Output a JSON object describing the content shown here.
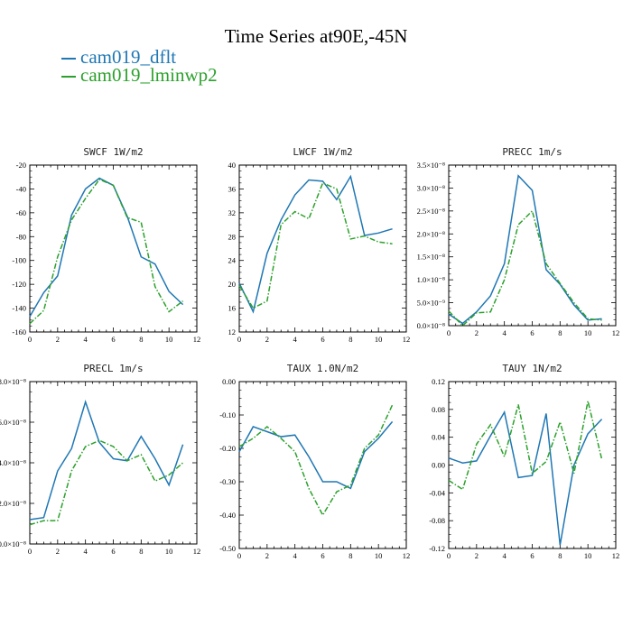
{
  "title": "Time Series at90E,-45N",
  "legend": [
    {
      "label": "cam019_dflt",
      "color": "#1f77b4"
    },
    {
      "label": "cam019_lminwp2",
      "color": "#2ca02c"
    }
  ],
  "chart_data": [
    {
      "type": "line",
      "title": "SWCF",
      "units": "1W/m2",
      "x": [
        0,
        1,
        2,
        3,
        4,
        5,
        6,
        7,
        8,
        9,
        10,
        11
      ],
      "xlim": [
        0,
        12
      ],
      "ylim": [
        -160,
        -20
      ],
      "xticks": [
        0,
        2,
        4,
        6,
        8,
        10,
        12
      ],
      "xticklabels": [
        "0",
        "2",
        "4",
        "6",
        "8",
        "10",
        "12"
      ],
      "yticks": [
        -160,
        -140,
        -120,
        -100,
        -80,
        -60,
        -40,
        -20
      ],
      "yticklabels": [
        "-160",
        "-140",
        "-120",
        "-100",
        "-80",
        "-60",
        "-40",
        "-20"
      ],
      "series": [
        {
          "name": "cam019_dflt",
          "values": [
            -147,
            -127,
            -113,
            -62,
            -40,
            -31,
            -37,
            -63,
            -97,
            -103,
            -126,
            -137
          ]
        },
        {
          "name": "cam019_lminwp2",
          "values": [
            -153,
            -142,
            -97,
            -66,
            -48,
            -32,
            -37,
            -64,
            -68,
            -122,
            -143,
            -134
          ]
        }
      ]
    },
    {
      "type": "line",
      "title": "LWCF",
      "units": "1W/m2",
      "x": [
        0,
        1,
        2,
        3,
        4,
        5,
        6,
        7,
        8,
        9,
        10,
        11
      ],
      "xlim": [
        0,
        12
      ],
      "ylim": [
        12,
        40
      ],
      "xticks": [
        0,
        2,
        4,
        6,
        8,
        10,
        12
      ],
      "xticklabels": [
        "0",
        "2",
        "4",
        "6",
        "8",
        "10",
        "12"
      ],
      "yticks": [
        12,
        16,
        20,
        24,
        28,
        32,
        36,
        40
      ],
      "yticklabels": [
        "12",
        "16",
        "20",
        "24",
        "28",
        "32",
        "36",
        "40"
      ],
      "series": [
        {
          "name": "cam019_dflt",
          "values": [
            20.2,
            15.4,
            25.2,
            30.8,
            35.0,
            37.5,
            37.3,
            34.2,
            38.1,
            28.2,
            28.6,
            29.3
          ]
        },
        {
          "name": "cam019_lminwp2",
          "values": [
            19.8,
            16.0,
            17.2,
            30.0,
            32.2,
            31.0,
            37.0,
            36.0,
            27.6,
            28.1,
            27.1,
            26.8
          ]
        }
      ]
    },
    {
      "type": "line",
      "title": "PRECC",
      "units": "1m/s",
      "x": [
        0,
        1,
        2,
        3,
        4,
        5,
        6,
        7,
        8,
        9,
        10,
        11
      ],
      "xlim": [
        0,
        12
      ],
      "ylim": [
        0,
        3.5e-08
      ],
      "xticks": [
        0,
        2,
        4,
        6,
        8,
        10,
        12
      ],
      "xticklabels": [
        "0",
        "2",
        "4",
        "6",
        "8",
        "10",
        "12"
      ],
      "yticks": [
        0,
        5e-09,
        1e-08,
        1.5e-08,
        2e-08,
        2.5e-08,
        3e-08,
        3.5e-08
      ],
      "yticklabels": [
        "0.0×10⁻⁸",
        "5.0×10⁻⁹",
        "1.0×10⁻⁸",
        "1.5×10⁻⁸",
        "2.0×10⁻⁸",
        "2.5×10⁻⁸",
        "3.0×10⁻⁸",
        "3.5×10⁻⁸"
      ],
      "series": [
        {
          "name": "cam019_dflt",
          "values": [
            2.5e-09,
            5e-10,
            3e-09,
            6.5e-09,
            1.35e-08,
            3.27e-08,
            2.95e-08,
            1.22e-08,
            9e-09,
            4.5e-09,
            1.2e-09,
            1.5e-09
          ]
        },
        {
          "name": "cam019_lminwp2",
          "values": [
            3.2e-09,
            0,
            2.8e-09,
            3e-09,
            1e-08,
            2.2e-08,
            2.5e-08,
            1.35e-08,
            9.2e-09,
            5e-09,
            1.5e-09,
            1.2e-09
          ]
        }
      ]
    },
    {
      "type": "line",
      "title": "PRECL",
      "units": "1m/s",
      "x": [
        0,
        1,
        2,
        3,
        4,
        5,
        6,
        7,
        8,
        9,
        10,
        11
      ],
      "xlim": [
        0,
        12
      ],
      "ylim": [
        0,
        8e-08
      ],
      "xticks": [
        0,
        2,
        4,
        6,
        8,
        10,
        12
      ],
      "xticklabels": [
        "0",
        "2",
        "4",
        "6",
        "8",
        "10",
        "12"
      ],
      "yticks": [
        0,
        2e-08,
        4e-08,
        6e-08,
        8e-08
      ],
      "yticklabels": [
        "0.0×10⁻⁸",
        "2.0×10⁻⁸",
        "4.0×10⁻⁸",
        "6.0×10⁻⁸",
        "8.0×10⁻⁸"
      ],
      "series": [
        {
          "name": "cam019_dflt",
          "values": [
            1.2e-08,
            1.3e-08,
            3.6e-08,
            4.7e-08,
            7e-08,
            5e-08,
            4.2e-08,
            4.1e-08,
            5.3e-08,
            4.2e-08,
            2.9e-08,
            4.9e-08
          ]
        },
        {
          "name": "cam019_lminwp2",
          "values": [
            9.5e-09,
            1.15e-08,
            1.15e-08,
            3.6e-08,
            4.8e-08,
            5.1e-08,
            4.8e-08,
            4.1e-08,
            4.4e-08,
            3.1e-08,
            3.4e-08,
            4e-08
          ]
        }
      ]
    },
    {
      "type": "line",
      "title": "TAUX",
      "units": "1.0N/m2",
      "x": [
        0,
        1,
        2,
        3,
        4,
        5,
        6,
        7,
        8,
        9,
        10,
        11
      ],
      "xlim": [
        0,
        12
      ],
      "ylim": [
        -0.5,
        0
      ],
      "xticks": [
        0,
        2,
        4,
        6,
        8,
        10,
        12
      ],
      "xticklabels": [
        "0",
        "2",
        "4",
        "6",
        "8",
        "10",
        "12"
      ],
      "yticks": [
        -0.5,
        -0.4,
        -0.3,
        -0.2,
        -0.1,
        0
      ],
      "yticklabels": [
        "-0.50",
        "-0.40",
        "-0.30",
        "-0.20",
        "-0.10",
        "0.00"
      ],
      "series": [
        {
          "name": "cam019_dflt",
          "values": [
            -0.21,
            -0.135,
            -0.15,
            -0.165,
            -0.16,
            -0.225,
            -0.3,
            -0.3,
            -0.32,
            -0.21,
            -0.17,
            -0.12
          ]
        },
        {
          "name": "cam019_lminwp2",
          "values": [
            -0.195,
            -0.17,
            -0.135,
            -0.17,
            -0.21,
            -0.32,
            -0.4,
            -0.33,
            -0.31,
            -0.2,
            -0.16,
            -0.07
          ]
        }
      ]
    },
    {
      "type": "line",
      "title": "TAUY",
      "units": "1N/m2",
      "x": [
        0,
        1,
        2,
        3,
        4,
        5,
        6,
        7,
        8,
        9,
        10,
        11
      ],
      "xlim": [
        0,
        12
      ],
      "ylim": [
        -0.12,
        0.12
      ],
      "xticks": [
        0,
        2,
        4,
        6,
        8,
        10,
        12
      ],
      "xticklabels": [
        "0",
        "2",
        "4",
        "6",
        "8",
        "10",
        "12"
      ],
      "yticks": [
        -0.12,
        -0.08,
        -0.04,
        0,
        0.04,
        0.08,
        0.12
      ],
      "yticklabels": [
        "-0.12",
        "-0.08",
        "-0.04",
        "0.00",
        "0.04",
        "0.08",
        "0.12"
      ],
      "series": [
        {
          "name": "cam019_dflt",
          "values": [
            0.01,
            0.003,
            0.006,
            0.042,
            0.076,
            -0.018,
            -0.015,
            0.074,
            -0.115,
            0.0,
            0.045,
            0.066
          ]
        },
        {
          "name": "cam019_lminwp2",
          "values": [
            -0.022,
            -0.035,
            0.03,
            0.058,
            0.012,
            0.087,
            -0.012,
            0.005,
            0.062,
            -0.012,
            0.092,
            0.008
          ]
        }
      ]
    }
  ]
}
